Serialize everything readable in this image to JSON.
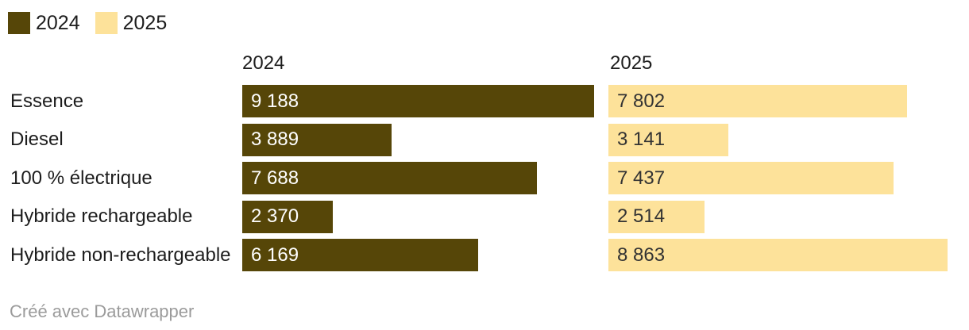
{
  "chart_data": {
    "type": "bar",
    "variant": "split-bars-table",
    "title": "",
    "categories": [
      "Essence",
      "Diesel",
      "100 % électrique",
      "Hybride rechargeable",
      "Hybride non-rechargeable"
    ],
    "series": [
      {
        "name": "2024",
        "color": "#564608",
        "value_text_color": "#ffffff",
        "values": [
          9188,
          3889,
          7688,
          2370,
          6169
        ],
        "value_labels": [
          "9 188",
          "3 889",
          "7 688",
          "2 370",
          "6 169"
        ]
      },
      {
        "name": "2025",
        "color": "#fde29a",
        "value_text_color": "#333333",
        "values": [
          7802,
          3141,
          7437,
          2514,
          8863
        ],
        "value_labels": [
          "7 802",
          "3 141",
          "7 437",
          "2 514",
          "8 863"
        ]
      }
    ],
    "xlim": [
      0,
      9188
    ],
    "grid": "off",
    "legend_position": "top-left",
    "number_format": "space-separated thousands (fr-FR)"
  },
  "footer": {
    "attribution": "Créé avec Datawrapper"
  }
}
